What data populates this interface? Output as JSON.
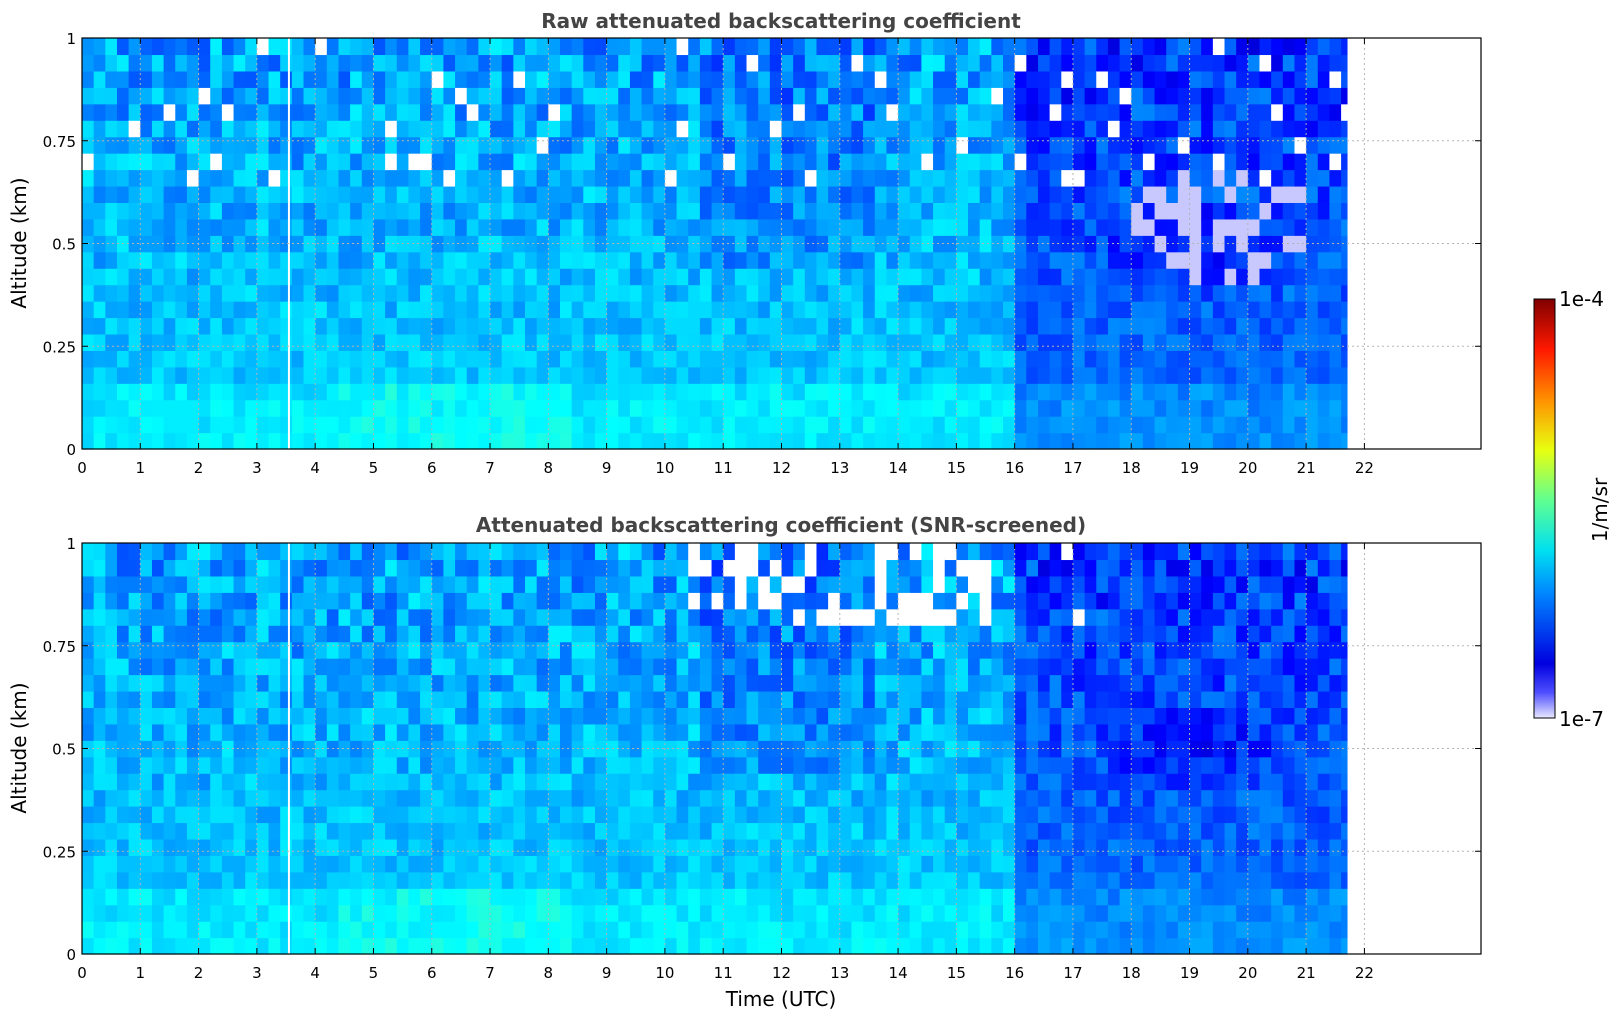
{
  "chart_data": [
    {
      "type": "heatmap",
      "title": "Raw attenuated backscattering coefficient",
      "xlabel": "",
      "ylabel": "Altitude (km)",
      "xlim": [
        0,
        24
      ],
      "ylim": [
        0,
        1
      ],
      "x_ticks": [
        "0",
        "1",
        "2",
        "3",
        "4",
        "5",
        "6",
        "7",
        "8",
        "9",
        "10",
        "11",
        "12",
        "13",
        "14",
        "15",
        "16",
        "17",
        "18",
        "19",
        "20",
        "21",
        "22"
      ],
      "y_ticks": [
        "0",
        "0.25",
        "0.5",
        "0.75",
        "1"
      ],
      "grid": true,
      "data_end_time": 21.7,
      "gap_time": 3.55,
      "screened": false
    },
    {
      "type": "heatmap",
      "title": "Attenuated backscattering coefficient (SNR-screened)",
      "xlabel": "Time (UTC)",
      "ylabel": "Altitude (km)",
      "xlim": [
        0,
        24
      ],
      "ylim": [
        0,
        1
      ],
      "x_ticks": [
        "0",
        "1",
        "2",
        "3",
        "4",
        "5",
        "6",
        "7",
        "8",
        "9",
        "10",
        "11",
        "12",
        "13",
        "14",
        "15",
        "16",
        "17",
        "18",
        "19",
        "20",
        "21",
        "22"
      ],
      "y_ticks": [
        "0",
        "0.25",
        "0.5",
        "0.75",
        "1"
      ],
      "grid": true,
      "data_end_time": 21.7,
      "gap_time": 3.55,
      "screened": true
    }
  ],
  "colorbar": {
    "label": "1/m/sr",
    "max_label": "1e-4",
    "min_label": "1e-7",
    "scale": "log",
    "colormap": "jet",
    "range": [
      1e-07,
      0.0001
    ]
  }
}
